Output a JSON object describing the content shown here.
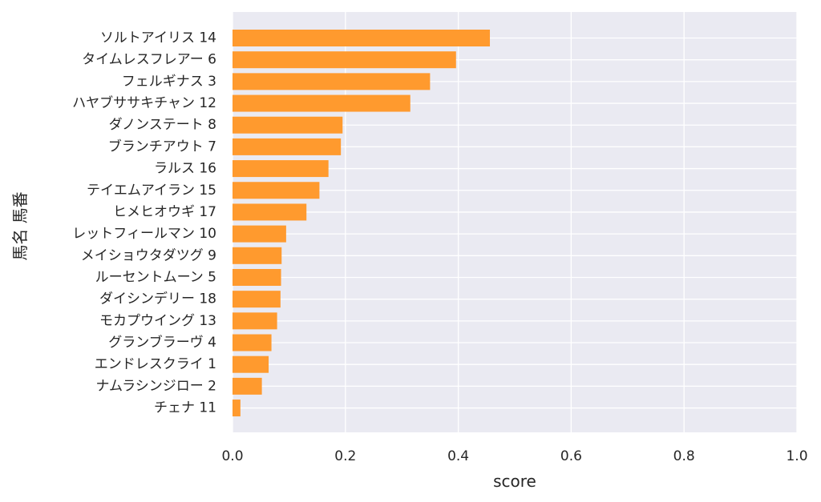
{
  "chart_data": {
    "type": "bar",
    "orientation": "horizontal",
    "xlabel": "score",
    "ylabel": "馬名 馬番",
    "xlim": [
      0.0,
      1.0
    ],
    "xticks": [
      "0.0",
      "0.2",
      "0.4",
      "0.6",
      "0.8",
      "1.0"
    ],
    "grid": true,
    "bar_color": "#ff9a2e",
    "background_color": "#eaeaf2",
    "categories": [
      "ソルトアイリス 14",
      "タイムレスフレアー 6",
      "フェルギナス 3",
      "ハヤブササキチャン 12",
      "ダノンステート 8",
      "ブランチアウト 7",
      "ラルス 16",
      "テイエムアイラン 15",
      "ヒメヒオウギ 17",
      "レットフィールマン 10",
      "メイショウタダツグ 9",
      "ルーセントムーン 5",
      "ダイシンデリー 18",
      "モカプウイング 13",
      "グランブラーヴ 4",
      "エンドレスクライ 1",
      "ナムラシンジロー 2",
      "チェナ 11"
    ],
    "values": [
      0.456,
      0.396,
      0.35,
      0.315,
      0.195,
      0.192,
      0.17,
      0.154,
      0.131,
      0.095,
      0.087,
      0.086,
      0.085,
      0.079,
      0.069,
      0.064,
      0.052,
      0.014
    ]
  }
}
